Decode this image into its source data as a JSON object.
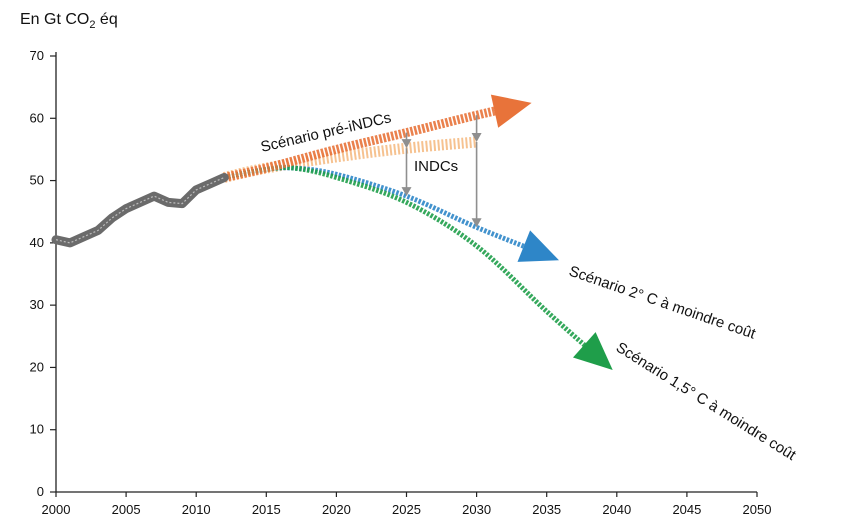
{
  "chart_data": {
    "type": "line",
    "title": "",
    "ylabel": {
      "prefix": "En Gt CO",
      "sub": "2",
      "suffix": " éq"
    },
    "xlabel": "",
    "xlim": [
      2000,
      2050
    ],
    "ylim": [
      0,
      70
    ],
    "x_ticks": [
      2000,
      2005,
      2010,
      2015,
      2020,
      2025,
      2030,
      2035,
      2040,
      2045,
      2050
    ],
    "y_ticks": [
      0,
      10,
      20,
      30,
      40,
      50,
      60,
      70
    ],
    "grid": false,
    "legend": "none",
    "series": [
      {
        "key": "historical",
        "color": "#6b6b6b",
        "x": [
          2000,
          2001,
          2002,
          2003,
          2004,
          2005,
          2006,
          2007,
          2008,
          2009,
          2010,
          2011,
          2012
        ],
        "y": [
          40.5,
          40.0,
          41.0,
          42.0,
          44.0,
          45.5,
          46.5,
          47.5,
          46.5,
          46.3,
          48.5,
          49.5,
          50.5
        ]
      },
      {
        "key": "pre_indcs",
        "label": "Scénario pré-iNDCs",
        "color": "#e8733a",
        "x": [
          2012,
          2015,
          2020,
          2025,
          2030,
          2033
        ],
        "y": [
          50.5,
          52.0,
          55.0,
          57.7,
          60.5,
          62.0
        ]
      },
      {
        "key": "indcs",
        "label": "INDCs",
        "color": "#f5b77c",
        "x": [
          2012,
          2015,
          2020,
          2025,
          2030
        ],
        "y": [
          50.5,
          52.0,
          53.8,
          55.2,
          56.2
        ]
      },
      {
        "key": "s2c",
        "label": "Scénario 2° C à moindre coût",
        "color": "#2e86c8",
        "x": [
          2012,
          2015,
          2017,
          2020,
          2025,
          2030,
          2035
        ],
        "y": [
          50.5,
          51.8,
          52.0,
          51.0,
          47.5,
          42.5,
          38.0
        ]
      },
      {
        "key": "s15c",
        "label": "Scénario 1,5° C à moindre coût",
        "color": "#1f9e4a",
        "x": [
          2012,
          2015,
          2017,
          2020,
          2025,
          2030,
          2035,
          2039
        ],
        "y": [
          50.5,
          51.8,
          52.0,
          50.5,
          46.5,
          39.5,
          29.0,
          21.0
        ]
      }
    ],
    "reduction_arrows": [
      {
        "x": 2025,
        "from": 57.7,
        "to": 55.2,
        "color": "#8f8f8f"
      },
      {
        "x": 2025,
        "from": 55.2,
        "to": 47.5,
        "color": "#8f8f8f"
      },
      {
        "x": 2030,
        "from": 60.5,
        "to": 56.2,
        "color": "#8f8f8f"
      },
      {
        "x": 2030,
        "from": 56.2,
        "to": 42.5,
        "color": "#8f8f8f"
      }
    ]
  }
}
